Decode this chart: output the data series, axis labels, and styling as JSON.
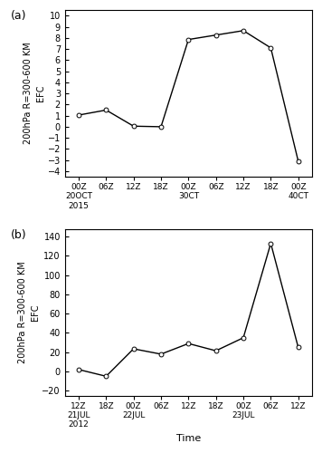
{
  "panel_a": {
    "label": "(a)",
    "x_indices": [
      0,
      1,
      2,
      3,
      4,
      5,
      6,
      7,
      8
    ],
    "y_values": [
      1.05,
      1.5,
      0.05,
      0.0,
      7.85,
      8.25,
      8.65,
      7.1,
      -3.1
    ],
    "x_ticklabels_line1": [
      "00Z",
      "06Z",
      "12Z",
      "18Z",
      "00Z",
      "06Z",
      "12Z",
      "18Z",
      "00Z"
    ],
    "x_ticklabels_line2": [
      "20OCT",
      "",
      "",
      "",
      "30CT",
      "",
      "",
      "",
      "40CT"
    ],
    "x_ticklabels_line3": [
      "2015",
      "",
      "",
      "",
      "",
      "",
      "",
      "",
      ""
    ],
    "yticks": [
      -4,
      -3,
      -2,
      -1,
      0,
      1,
      2,
      3,
      4,
      5,
      6,
      7,
      8,
      9,
      10
    ],
    "ylim": [
      -4.5,
      10.5
    ],
    "ylabel_top": "200hPa R=300-600 KM",
    "ylabel_bottom": "EFC"
  },
  "panel_b": {
    "label": "(b)",
    "x_indices": [
      0,
      1,
      2,
      3,
      4,
      5,
      6,
      7,
      8
    ],
    "y_values": [
      2.0,
      -5.0,
      23.5,
      18.0,
      29.0,
      21.5,
      35.0,
      133.0,
      25.0
    ],
    "x_ticklabels_line1": [
      "12Z",
      "18Z",
      "00Z",
      "06Z",
      "12Z",
      "18Z",
      "00Z",
      "06Z",
      "12Z"
    ],
    "x_ticklabels_line2": [
      "21JUL",
      "",
      "22JUL",
      "",
      "",
      "",
      "23JUL",
      "",
      ""
    ],
    "x_ticklabels_line3": [
      "2012",
      "",
      "",
      "",
      "",
      "",
      "",
      "",
      ""
    ],
    "yticks": [
      -20,
      0,
      20,
      40,
      60,
      80,
      100,
      120,
      140
    ],
    "ylim": [
      -25,
      148
    ],
    "ylabel_top": "200hPa R=300-600 KM",
    "ylabel_bottom": "EFC",
    "xlabel": "Time"
  },
  "line_color": "#000000",
  "marker": "o",
  "marker_size": 3.5,
  "marker_facecolor": "white",
  "marker_edgecolor": "#000000",
  "linewidth": 1.0,
  "background": "#ffffff",
  "panel_bg": "white"
}
